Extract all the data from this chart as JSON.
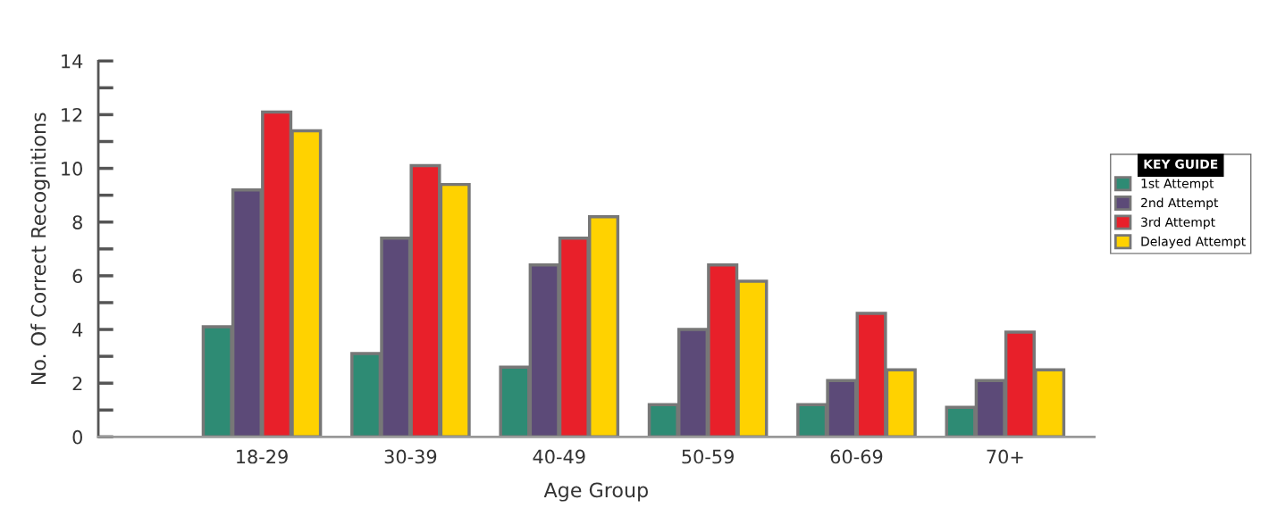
{
  "chart_data": {
    "type": "bar",
    "xlabel": "Age Group",
    "ylabel": "No. Of Correct Recognitions",
    "legend_title": "KEY GUIDE",
    "legend": "right",
    "categories": [
      "18-29",
      "30-39",
      "40-49",
      "50-59",
      "60-69",
      "70+"
    ],
    "series": [
      {
        "name": "1st Attempt",
        "color": "#2e8b74",
        "values": [
          4.1,
          3.1,
          2.6,
          1.2,
          1.2,
          1.1
        ]
      },
      {
        "name": "2nd Attempt",
        "color": "#5c4a78",
        "values": [
          9.2,
          7.4,
          6.4,
          4.0,
          2.1,
          2.1
        ]
      },
      {
        "name": "3rd Attempt",
        "color": "#e8202a",
        "values": [
          12.1,
          10.1,
          7.4,
          6.4,
          4.6,
          3.9
        ]
      },
      {
        "name": "Delayed Attempt",
        "color": "#ffd200",
        "values": [
          11.4,
          9.4,
          8.2,
          5.8,
          2.5,
          2.5
        ]
      }
    ],
    "ylim": [
      0,
      14
    ],
    "yticks": [
      0,
      2,
      4,
      6,
      8,
      10,
      12,
      14
    ],
    "grid": false
  }
}
